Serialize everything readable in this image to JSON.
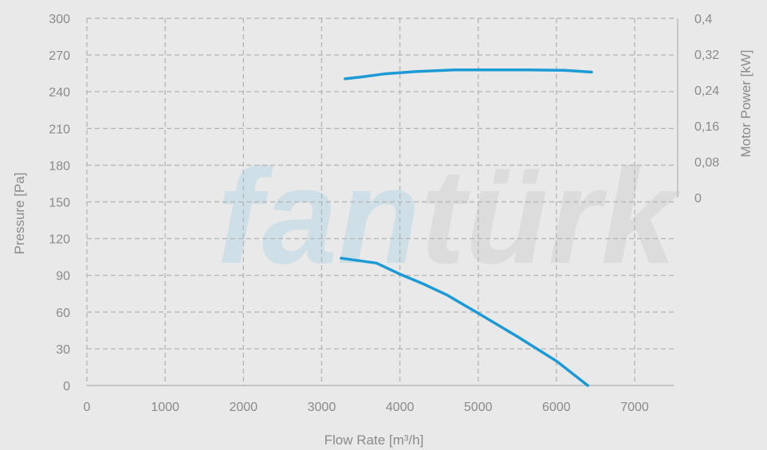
{
  "watermark": {
    "part1": "fan",
    "part2": "türk",
    "color1": "#cfdfe8",
    "color2": "#dcdcdc"
  },
  "chart_data": {
    "type": "line",
    "title": "",
    "xlabel": "Flow Rate [m³/h]",
    "ylabel": "Pressure [Pa]",
    "y2label": "Motor Power [kW]",
    "xlim": [
      0,
      7500
    ],
    "ylim": [
      0,
      300
    ],
    "y2lim": [
      0,
      0.4
    ],
    "x_ticks": [
      "0",
      "1000",
      "2000",
      "3000",
      "4000",
      "5000",
      "6000",
      "7000"
    ],
    "x_tick_values": [
      0,
      1000,
      2000,
      3000,
      4000,
      5000,
      6000,
      7000
    ],
    "y_ticks": [
      "0",
      "30",
      "60",
      "90",
      "120",
      "150",
      "180",
      "210",
      "240",
      "270",
      "300"
    ],
    "y_tick_values": [
      0,
      30,
      60,
      90,
      120,
      150,
      180,
      210,
      240,
      270,
      300
    ],
    "y2_ticks": [
      "0",
      "0,08",
      "0,16",
      "0,24",
      "0,32",
      "0,4"
    ],
    "y2_tick_values": [
      0,
      0.08,
      0.16,
      0.24,
      0.32,
      0.4
    ],
    "grid": true,
    "series": [
      {
        "axis": "y",
        "color": "#1c9ad6",
        "x": [
          3250,
          3700,
          4000,
          4300,
          4600,
          5000,
          5500,
          6000,
          6400
        ],
        "y": [
          104,
          100,
          91,
          83,
          74,
          59,
          40,
          20,
          0
        ]
      },
      {
        "axis": "y2",
        "color": "#1c9ad6",
        "x": [
          3300,
          3500,
          3800,
          4200,
          4700,
          5000,
          5600,
          6100,
          6450
        ],
        "y": [
          0.265,
          0.269,
          0.276,
          0.281,
          0.285,
          0.285,
          0.285,
          0.284,
          0.28
        ]
      }
    ]
  }
}
